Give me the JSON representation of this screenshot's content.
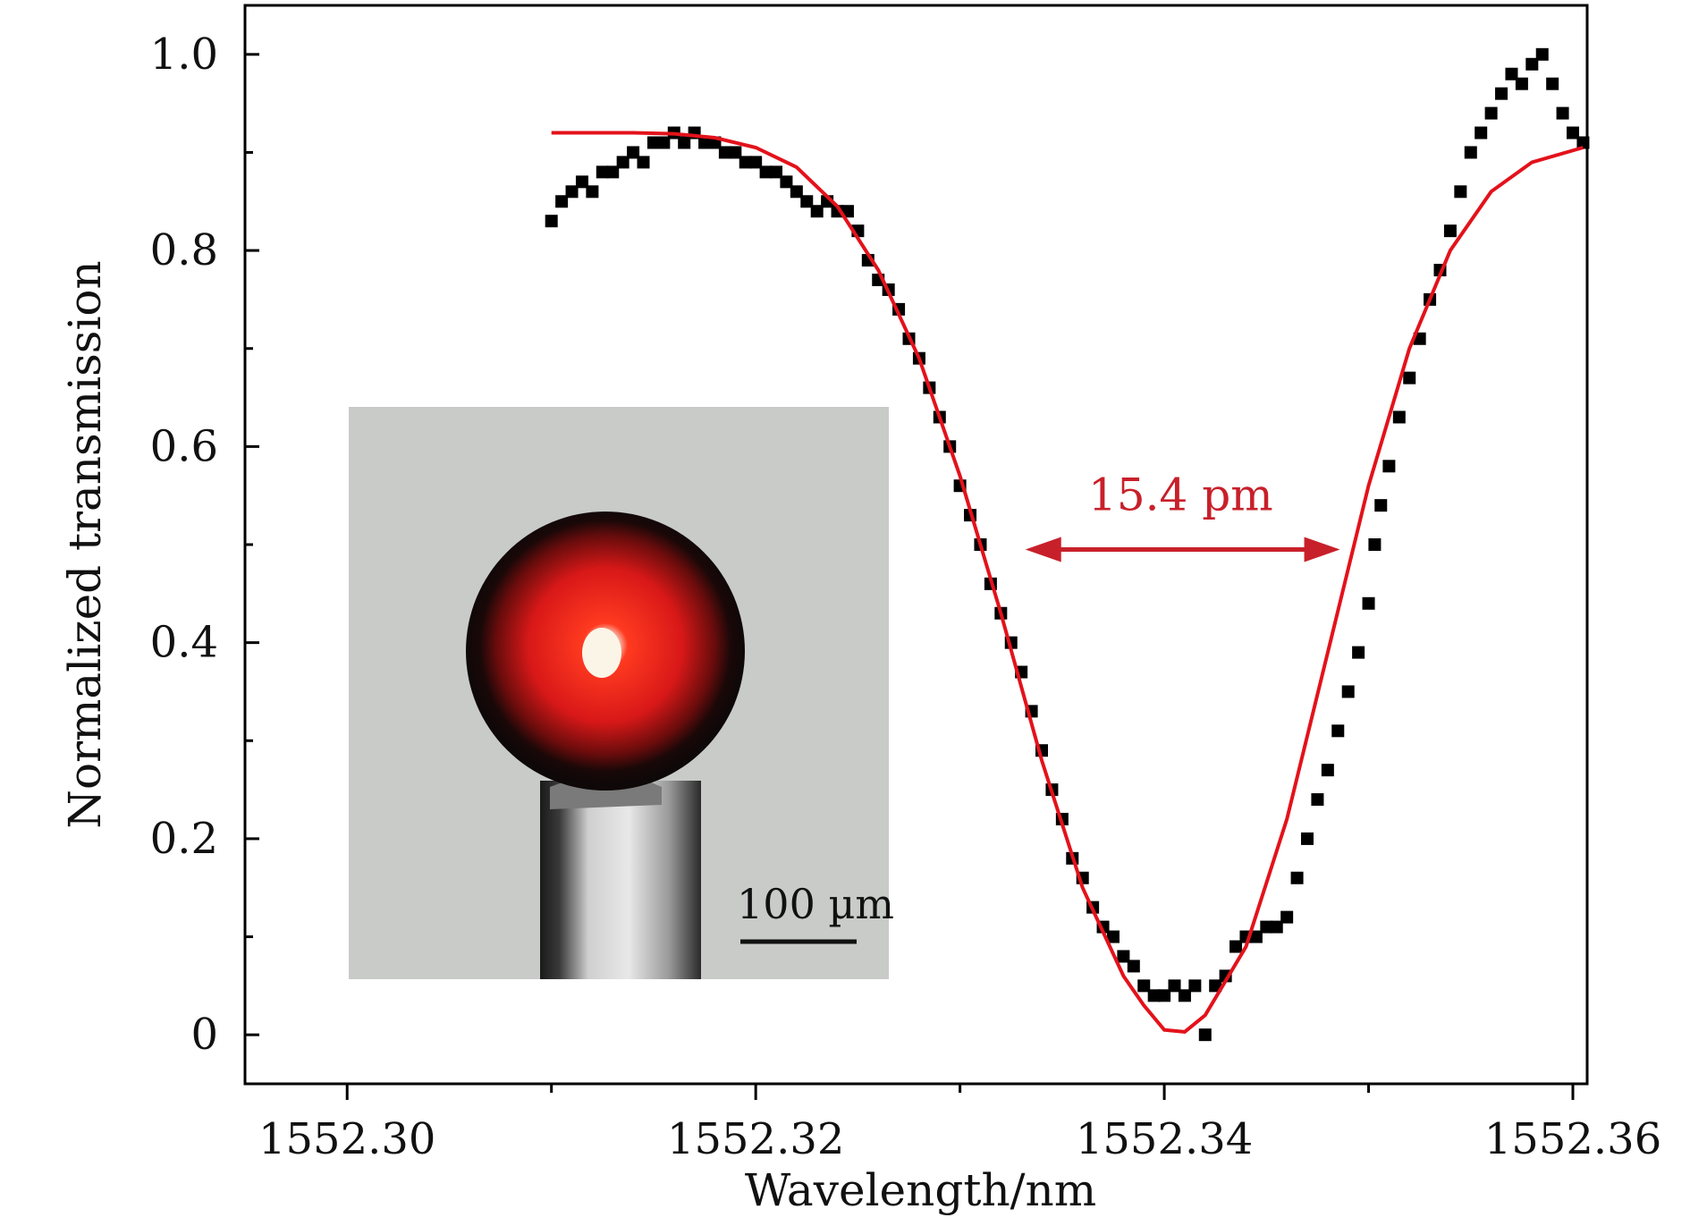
{
  "chart_data": {
    "type": "scatter",
    "xlabel": "Wavelength/nm",
    "ylabel": "Normalized transmission",
    "xlim": [
      1552.295,
      1552.3607
    ],
    "ylim": [
      -0.05,
      1.05
    ],
    "x_ticks": [
      {
        "value": 1552.3,
        "label": "1552.30"
      },
      {
        "value": 1552.32,
        "label": "1552.32"
      },
      {
        "value": 1552.34,
        "label": "1552.34"
      },
      {
        "value": 1552.36,
        "label": "1552.36"
      }
    ],
    "x_minor_ticks": [
      1552.31,
      1552.33,
      1552.35
    ],
    "y_ticks": [
      {
        "value": 0,
        "label": "0"
      },
      {
        "value": 0.2,
        "label": "0.2"
      },
      {
        "value": 0.4,
        "label": "0.4"
      },
      {
        "value": 0.6,
        "label": "0.6"
      },
      {
        "value": 0.8,
        "label": "0.8"
      },
      {
        "value": 1.0,
        "label": "1.0"
      }
    ],
    "y_minor_ticks": [
      0.1,
      0.3,
      0.5,
      0.7,
      0.9
    ],
    "grid": false,
    "series": [
      {
        "kind": "scatter",
        "color": "#000000",
        "points": [
          [
            1552.31,
            0.83
          ],
          [
            1552.3105,
            0.85
          ],
          [
            1552.311,
            0.86
          ],
          [
            1552.3115,
            0.87
          ],
          [
            1552.312,
            0.86
          ],
          [
            1552.3125,
            0.88
          ],
          [
            1552.313,
            0.88
          ],
          [
            1552.3135,
            0.89
          ],
          [
            1552.314,
            0.9
          ],
          [
            1552.3145,
            0.89
          ],
          [
            1552.315,
            0.91
          ],
          [
            1552.3155,
            0.91
          ],
          [
            1552.316,
            0.92
          ],
          [
            1552.3165,
            0.91
          ],
          [
            1552.317,
            0.92
          ],
          [
            1552.3175,
            0.91
          ],
          [
            1552.318,
            0.91
          ],
          [
            1552.3185,
            0.9
          ],
          [
            1552.319,
            0.9
          ],
          [
            1552.3195,
            0.89
          ],
          [
            1552.32,
            0.89
          ],
          [
            1552.3205,
            0.88
          ],
          [
            1552.321,
            0.88
          ],
          [
            1552.3215,
            0.87
          ],
          [
            1552.322,
            0.86
          ],
          [
            1552.3225,
            0.85
          ],
          [
            1552.323,
            0.84
          ],
          [
            1552.3235,
            0.85
          ],
          [
            1552.324,
            0.84
          ],
          [
            1552.3245,
            0.84
          ],
          [
            1552.325,
            0.82
          ],
          [
            1552.3255,
            0.79
          ],
          [
            1552.326,
            0.77
          ],
          [
            1552.3265,
            0.76
          ],
          [
            1552.327,
            0.74
          ],
          [
            1552.3275,
            0.71
          ],
          [
            1552.328,
            0.69
          ],
          [
            1552.3285,
            0.66
          ],
          [
            1552.329,
            0.63
          ],
          [
            1552.3295,
            0.6
          ],
          [
            1552.33,
            0.56
          ],
          [
            1552.3305,
            0.53
          ],
          [
            1552.331,
            0.5
          ],
          [
            1552.3315,
            0.46
          ],
          [
            1552.332,
            0.43
          ],
          [
            1552.3325,
            0.4
          ],
          [
            1552.333,
            0.37
          ],
          [
            1552.3335,
            0.33
          ],
          [
            1552.334,
            0.29
          ],
          [
            1552.3345,
            0.25
          ],
          [
            1552.335,
            0.22
          ],
          [
            1552.3355,
            0.18
          ],
          [
            1552.336,
            0.16
          ],
          [
            1552.3365,
            0.13
          ],
          [
            1552.337,
            0.11
          ],
          [
            1552.3375,
            0.1
          ],
          [
            1552.338,
            0.08
          ],
          [
            1552.3385,
            0.07
          ],
          [
            1552.339,
            0.05
          ],
          [
            1552.3395,
            0.04
          ],
          [
            1552.34,
            0.04
          ],
          [
            1552.3405,
            0.05
          ],
          [
            1552.341,
            0.04
          ],
          [
            1552.3415,
            0.05
          ],
          [
            1552.342,
            0.0
          ],
          [
            1552.3425,
            0.05
          ],
          [
            1552.343,
            0.06
          ],
          [
            1552.3435,
            0.09
          ],
          [
            1552.344,
            0.1
          ],
          [
            1552.3445,
            0.1
          ],
          [
            1552.345,
            0.11
          ],
          [
            1552.3455,
            0.11
          ],
          [
            1552.346,
            0.12
          ],
          [
            1552.3465,
            0.16
          ],
          [
            1552.347,
            0.2
          ],
          [
            1552.3475,
            0.24
          ],
          [
            1552.348,
            0.27
          ],
          [
            1552.3485,
            0.31
          ],
          [
            1552.349,
            0.35
          ],
          [
            1552.3495,
            0.39
          ],
          [
            1552.35,
            0.44
          ],
          [
            1552.3503,
            0.5
          ],
          [
            1552.3506,
            0.54
          ],
          [
            1552.351,
            0.58
          ],
          [
            1552.3515,
            0.63
          ],
          [
            1552.352,
            0.67
          ],
          [
            1552.3525,
            0.71
          ],
          [
            1552.353,
            0.75
          ],
          [
            1552.3535,
            0.78
          ],
          [
            1552.354,
            0.82
          ],
          [
            1552.3545,
            0.86
          ],
          [
            1552.355,
            0.9
          ],
          [
            1552.3555,
            0.92
          ],
          [
            1552.356,
            0.94
          ],
          [
            1552.3565,
            0.96
          ],
          [
            1552.357,
            0.98
          ],
          [
            1552.3575,
            0.97
          ],
          [
            1552.358,
            0.99
          ],
          [
            1552.3585,
            1.0
          ],
          [
            1552.359,
            0.97
          ],
          [
            1552.3595,
            0.94
          ],
          [
            1552.36,
            0.92
          ],
          [
            1552.3605,
            0.91
          ]
        ]
      },
      {
        "kind": "line",
        "color": "#e3121b",
        "points": [
          [
            1552.31,
            0.92
          ],
          [
            1552.312,
            0.92
          ],
          [
            1552.314,
            0.92
          ],
          [
            1552.316,
            0.919
          ],
          [
            1552.318,
            0.915
          ],
          [
            1552.32,
            0.905
          ],
          [
            1552.322,
            0.885
          ],
          [
            1552.324,
            0.845
          ],
          [
            1552.326,
            0.78
          ],
          [
            1552.328,
            0.69
          ],
          [
            1552.33,
            0.57
          ],
          [
            1552.332,
            0.43
          ],
          [
            1552.334,
            0.28
          ],
          [
            1552.336,
            0.15
          ],
          [
            1552.338,
            0.06
          ],
          [
            1552.339,
            0.03
          ],
          [
            1552.34,
            0.005
          ],
          [
            1552.341,
            0.003
          ],
          [
            1552.342,
            0.02
          ],
          [
            1552.344,
            0.09
          ],
          [
            1552.346,
            0.22
          ],
          [
            1552.348,
            0.39
          ],
          [
            1552.35,
            0.56
          ],
          [
            1552.352,
            0.7
          ],
          [
            1552.354,
            0.8
          ],
          [
            1552.356,
            0.86
          ],
          [
            1552.358,
            0.89
          ],
          [
            1552.3605,
            0.905
          ]
        ]
      }
    ],
    "annotation": {
      "text": "15.4 pm",
      "color": "#c8202a",
      "arrow_x": [
        1552.3332,
        1552.3486
      ],
      "arrow_y": 0.495,
      "text_x": 1552.3408,
      "text_y": 0.535
    },
    "inset": {
      "description_icon": "microsphere-resonator-photo",
      "scalebar_label": "100 µm"
    }
  }
}
